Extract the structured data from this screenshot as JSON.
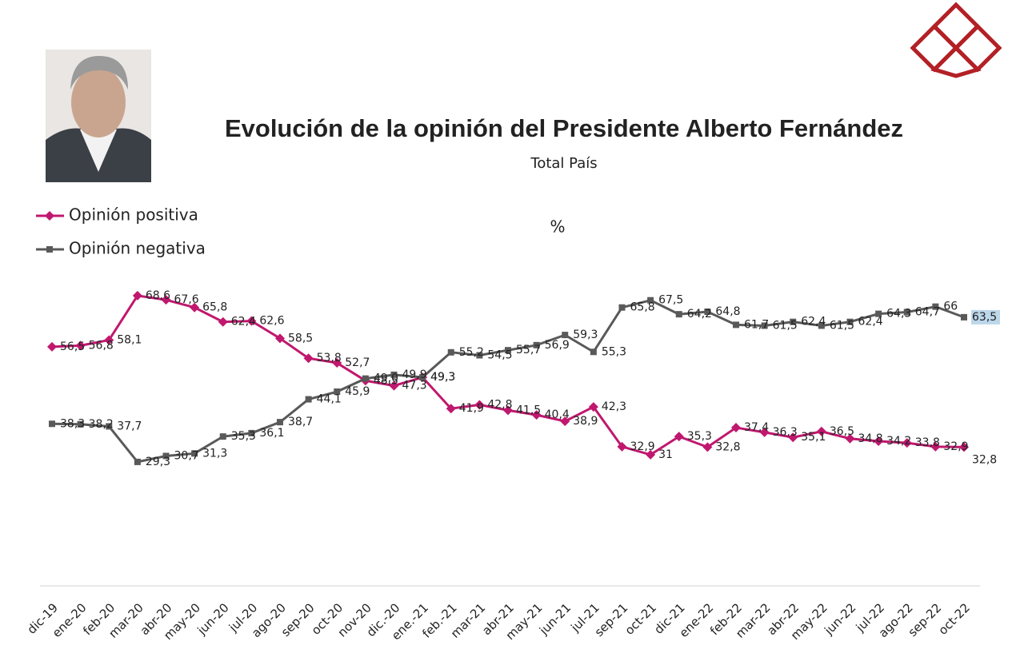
{
  "chart_data": {
    "type": "line",
    "title": "Evolución de la opinión del Presidente Alberto Fernández",
    "subtitle": "Total País",
    "y_label": "%",
    "categories": [
      "dic-19",
      "ene-20",
      "feb-20",
      "mar-20",
      "abr-20",
      "may-20",
      "jun-20",
      "jul-20",
      "ago-20",
      "sep-20",
      "oct-20",
      "nov-20",
      "dic.-20",
      "ene.-21",
      "feb.-21",
      "mar-21",
      "abr-21",
      "may-21",
      "jun-21",
      "jul-21",
      "sep-21",
      "oct-21",
      "dic-21",
      "ene-22",
      "feb-22",
      "mar-22",
      "abr-22",
      "may-22",
      "jun-22",
      "jul-22",
      "ago-22",
      "sep-22",
      "oct-22"
    ],
    "ylim": [
      0,
      75
    ],
    "series": [
      {
        "name": "Opinión positiva",
        "color": "#c0186e",
        "marker": "diamond",
        "values": [
          56.5,
          56.8,
          58.1,
          68.6,
          67.6,
          65.8,
          62.4,
          62.6,
          58.5,
          53.8,
          52.7,
          48.5,
          47.3,
          49.3,
          41.9,
          42.8,
          41.5,
          40.4,
          38.9,
          42.3,
          32.9,
          31,
          35.3,
          32.8,
          37.4,
          36.3,
          35.1,
          36.5,
          34.8,
          34.2,
          33.8,
          32.9,
          32.8
        ],
        "value_labels": [
          "56,5",
          "56,8",
          "58,1",
          "68,6",
          "67,6",
          "65,8",
          "62,4",
          "62,6",
          "58,5",
          "53,8",
          "52,7",
          "48,5",
          "47,3",
          "49,3",
          "41,9",
          "42,8",
          "41,5",
          "40,4",
          "38,9",
          "42,3",
          "32,9",
          "31",
          "35,3",
          "32,8",
          "37,4",
          "36,3",
          "35,1",
          "36,5",
          "34,8",
          "34,2",
          "33,8",
          "32,9",
          "32,8"
        ]
      },
      {
        "name": "Opinión negativa",
        "color": "#595959",
        "marker": "square",
        "values": [
          38.3,
          38.2,
          37.7,
          29.3,
          30.7,
          31.3,
          35.3,
          36.1,
          38.7,
          44.1,
          45.9,
          49,
          49.9,
          49.3,
          55.2,
          54.5,
          55.7,
          56.9,
          59.3,
          55.3,
          65.8,
          67.5,
          64.2,
          64.8,
          61.7,
          61.5,
          62.4,
          61.5,
          62.4,
          64.3,
          64.7,
          66,
          63.5
        ],
        "value_labels": [
          "38,3",
          "38,2",
          "37,7",
          "29,3",
          "30,7",
          "31,3",
          "35,3",
          "36,1",
          "38,7",
          "44,1",
          "45,9",
          "49,0",
          "49,9",
          "49,3",
          "55,2",
          "54,5",
          "55,7",
          "56,9",
          "59,3",
          "55,3",
          "65,8",
          "67,5",
          "64,2",
          "64,8",
          "61,7",
          "61,5",
          "62,4",
          "61,5",
          "62,4",
          "64,3",
          "64,7",
          "66",
          "63,5"
        ]
      }
    ]
  }
}
